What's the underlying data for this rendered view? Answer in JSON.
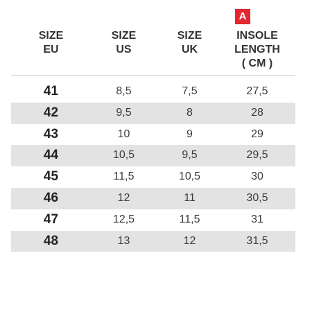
{
  "badge": "A",
  "headers": {
    "eu": [
      "SIZE",
      "EU"
    ],
    "us": [
      "SIZE",
      "US"
    ],
    "uk": [
      "SIZE",
      "UK"
    ],
    "insole": [
      "INSOLE",
      "LENGTH",
      "( CM )"
    ]
  },
  "rows": [
    {
      "eu": "41",
      "us": "8,5",
      "uk": "7,5",
      "cm": "27,5"
    },
    {
      "eu": "42",
      "us": "9,5",
      "uk": "8",
      "cm": "28"
    },
    {
      "eu": "43",
      "us": "10",
      "uk": "9",
      "cm": "29"
    },
    {
      "eu": "44",
      "us": "10,5",
      "uk": "9,5",
      "cm": "29,5"
    },
    {
      "eu": "45",
      "us": "11,5",
      "uk": "10,5",
      "cm": "30"
    },
    {
      "eu": "46",
      "us": "12",
      "uk": "11",
      "cm": "30,5"
    },
    {
      "eu": "47",
      "us": "12,5",
      "uk": "11,5",
      "cm": "31"
    },
    {
      "eu": "48",
      "us": "13",
      "uk": "12",
      "cm": "31,5"
    }
  ],
  "colors": {
    "badge": "#e3262f",
    "row_alt": "#e3e3e3",
    "divider": "#cfcfcf"
  }
}
